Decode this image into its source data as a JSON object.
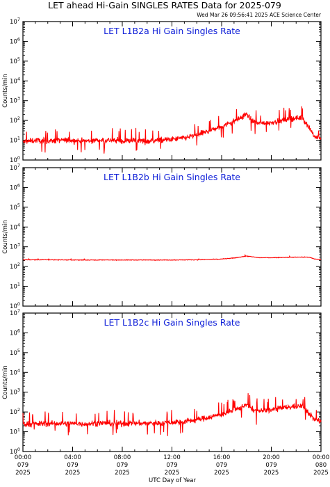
{
  "figure": {
    "title": "LET ahead Hi-Gain SINGLES RATES Data for 2025-079",
    "timestamp": "Wed Mar 26 09:56:41 2025 ACE Science Center",
    "xlabel": "UTC Day of Year",
    "line_color": "#ff0000",
    "panel_title_color": "#1020d8"
  },
  "chart_data": [
    {
      "type": "line",
      "title": "LET L1B2a Hi Gain Singles Rate",
      "ylabel": "Counts/min",
      "yscale": "log",
      "ylim": [
        1,
        10000000
      ],
      "y_tick_labels": [
        "10^0",
        "10^1",
        "10^2",
        "10^3",
        "10^4",
        "10^5",
        "10^6",
        "10^7"
      ],
      "xlim_hours": [
        0,
        24
      ],
      "series": [
        {
          "x_hours": [
            0,
            1,
            2,
            3,
            4,
            5,
            6,
            7,
            8,
            9,
            10,
            11,
            12,
            13,
            14,
            15,
            16,
            17,
            17.5,
            18,
            18.5,
            19,
            20,
            21,
            21.5,
            22,
            22.5,
            23,
            23.5,
            24
          ],
          "values": [
            8,
            10,
            9,
            10,
            10,
            9,
            10,
            10,
            9,
            10,
            9,
            10,
            11,
            13,
            18,
            30,
            50,
            90,
            130,
            220,
            90,
            70,
            80,
            100,
            120,
            130,
            140,
            50,
            15,
            12
          ]
        }
      ]
    },
    {
      "type": "line",
      "title": "LET L1B2b Hi Gain Singles Rate",
      "ylabel": "Counts/min",
      "yscale": "log",
      "ylim": [
        1,
        10000000
      ],
      "y_tick_labels": [
        "10^0",
        "10^1",
        "10^2",
        "10^3",
        "10^4",
        "10^5",
        "10^6",
        "10^7"
      ],
      "xlim_hours": [
        0,
        24
      ],
      "series": [
        {
          "x_hours": [
            0,
            2,
            4,
            6,
            8,
            10,
            12,
            14,
            16,
            17,
            18,
            19,
            20,
            21,
            22,
            23,
            23.5,
            24
          ],
          "values": [
            220,
            220,
            215,
            215,
            215,
            215,
            215,
            220,
            240,
            270,
            340,
            280,
            280,
            290,
            300,
            300,
            240,
            230
          ]
        }
      ]
    },
    {
      "type": "line",
      "title": "LET L1B2c Hi Gain Singles Rate",
      "ylabel": "Counts/min",
      "yscale": "log",
      "ylim": [
        1,
        10000000
      ],
      "y_tick_labels": [
        "10^0",
        "10^1",
        "10^2",
        "10^3",
        "10^4",
        "10^5",
        "10^6",
        "10^7"
      ],
      "xlim_hours": [
        0,
        24
      ],
      "x_ticks": [
        {
          "hour": 0,
          "time": "00:00",
          "doy": "079",
          "year": "2025"
        },
        {
          "hour": 4,
          "time": "04:00",
          "doy": "079",
          "year": "2025"
        },
        {
          "hour": 8,
          "time": "08:00",
          "doy": "079",
          "year": "2025"
        },
        {
          "hour": 12,
          "time": "12:00",
          "doy": "079",
          "year": "2025"
        },
        {
          "hour": 16,
          "time": "16:00",
          "doy": "079",
          "year": "2025"
        },
        {
          "hour": 20,
          "time": "20:00",
          "doy": "079",
          "year": "2025"
        },
        {
          "hour": 24,
          "time": "00:00",
          "doy": "080",
          "year": "2025"
        }
      ],
      "series": [
        {
          "x_hours": [
            0,
            1,
            2,
            3,
            4,
            5,
            6,
            7,
            8,
            9,
            10,
            11,
            12,
            13,
            14,
            15,
            16,
            17,
            17.5,
            18,
            18.5,
            19,
            20,
            21,
            21.5,
            22,
            22.5,
            23,
            23.5,
            24
          ],
          "values": [
            25,
            25,
            26,
            26,
            26,
            25,
            27,
            27,
            26,
            27,
            27,
            28,
            30,
            33,
            40,
            55,
            75,
            120,
            160,
            250,
            130,
            110,
            130,
            160,
            180,
            190,
            200,
            90,
            40,
            35
          ]
        }
      ]
    }
  ]
}
